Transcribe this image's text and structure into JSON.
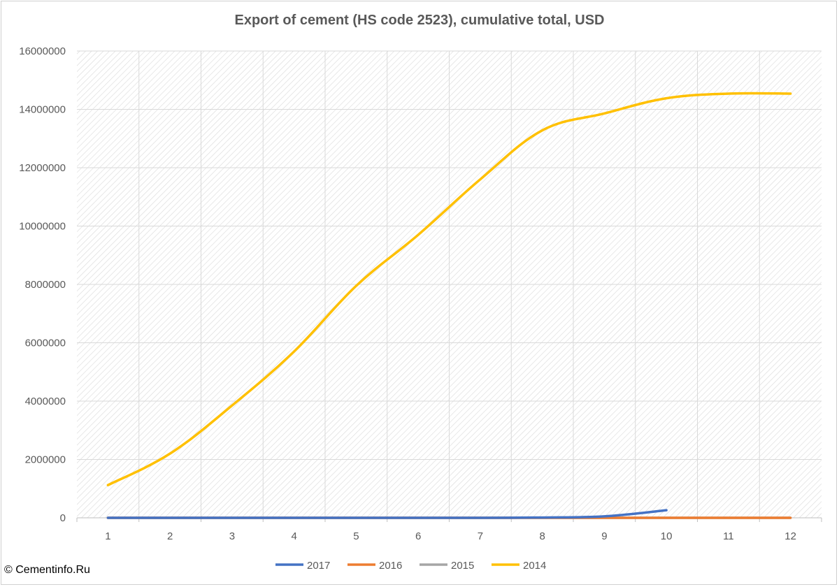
{
  "chart_data": {
    "type": "line",
    "title": "Export of cement (HS code 2523), cumulative total, USD",
    "xlabel": "",
    "ylabel": "",
    "x": [
      1,
      2,
      3,
      4,
      5,
      6,
      7,
      8,
      9,
      10,
      11,
      12
    ],
    "ylim": [
      0,
      16000000
    ],
    "yticks": [
      "0",
      "2000000",
      "4000000",
      "6000000",
      "8000000",
      "10000000",
      "12000000",
      "14000000",
      "16000000"
    ],
    "grid": true,
    "legend_position": "bottom",
    "series": [
      {
        "name": "2017",
        "color": "#4472C4",
        "values": [
          0,
          0,
          0,
          0,
          0,
          0,
          0,
          10000,
          50000,
          260000,
          null,
          null
        ]
      },
      {
        "name": "2016",
        "color": "#ED7D31",
        "values": [
          0,
          0,
          0,
          0,
          0,
          0,
          0,
          0,
          0,
          0,
          0,
          0
        ]
      },
      {
        "name": "2015",
        "color": "#A5A5A5",
        "values": [
          0,
          0,
          0,
          0,
          0,
          0,
          0,
          0,
          0,
          0,
          0,
          0
        ]
      },
      {
        "name": "2014",
        "color": "#FFC000",
        "values": [
          1120000,
          2200000,
          3850000,
          5700000,
          7950000,
          9700000,
          11600000,
          13280000,
          13860000,
          14380000,
          14540000,
          14540000
        ]
      }
    ]
  },
  "copyright": "© Cementinfo.Ru"
}
